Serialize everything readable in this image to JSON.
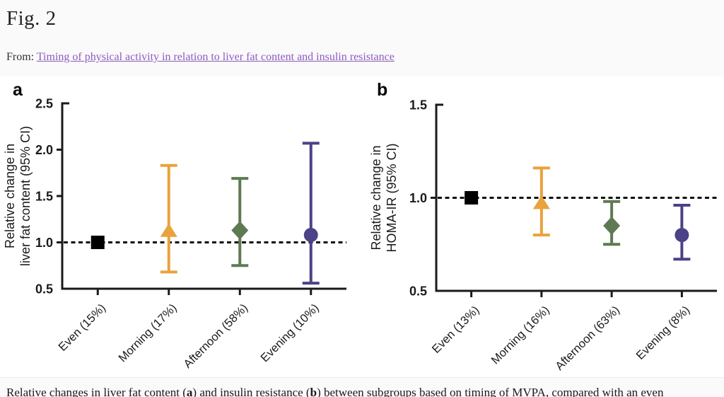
{
  "header": {
    "figure_label": "Fig. 2",
    "from_label": "From:",
    "link_text": "Timing of physical activity in relation to liver fat content and insulin resistance"
  },
  "caption": {
    "part1": "Relative changes in liver fat content (",
    "bold1": "a",
    "part2": ") and insulin resistance (",
    "bold2": "b",
    "part3": ") between subgroups based on timing of MVPA, compared with an even distribution"
  },
  "colors": {
    "even": "#000000",
    "morning": "#E9A23C",
    "afternoon": "#5E7A52",
    "evening": "#4B4287",
    "axis": "#1a1a1a",
    "reference_line": "#111111",
    "link": "#8d5bbf"
  },
  "chart_data": [
    {
      "type": "scatter",
      "panel_label": "a",
      "ylabel_lines": [
        "Relative change in",
        "liver fat content (95% CI)"
      ],
      "ylim": [
        0.5,
        2.5
      ],
      "yticks": [
        0.5,
        1.0,
        1.5,
        2.0,
        2.5
      ],
      "reference_line": 1.0,
      "grid": false,
      "categories": [
        "Even (15%)",
        "Morning (17%)",
        "Afternoon (58%)",
        "Evening (10%)"
      ],
      "points": [
        {
          "category": "Even (15%)",
          "value": 1.0,
          "ci_low": null,
          "ci_high": null,
          "marker": "square",
          "color": "#000000"
        },
        {
          "category": "Morning (17%)",
          "value": 1.12,
          "ci_low": 0.68,
          "ci_high": 1.83,
          "marker": "triangle",
          "color": "#E9A23C"
        },
        {
          "category": "Afternoon (58%)",
          "value": 1.13,
          "ci_low": 0.75,
          "ci_high": 1.69,
          "marker": "diamond",
          "color": "#5E7A52"
        },
        {
          "category": "Evening (10%)",
          "value": 1.08,
          "ci_low": 0.56,
          "ci_high": 2.07,
          "marker": "circle",
          "color": "#4B4287"
        }
      ]
    },
    {
      "type": "scatter",
      "panel_label": "b",
      "ylabel_lines": [
        "Relative change in",
        "HOMA-IR (95% CI)"
      ],
      "ylim": [
        0.5,
        1.5
      ],
      "yticks": [
        0.5,
        1.0,
        1.5
      ],
      "reference_line": 1.0,
      "grid": false,
      "categories": [
        "Even (13%)",
        "Morning (16%)",
        "Afternoon (63%)",
        "Evening (8%)"
      ],
      "points": [
        {
          "category": "Even (13%)",
          "value": 1.0,
          "ci_low": null,
          "ci_high": null,
          "marker": "square",
          "color": "#000000"
        },
        {
          "category": "Morning (16%)",
          "value": 0.97,
          "ci_low": 0.8,
          "ci_high": 1.16,
          "marker": "triangle",
          "color": "#E9A23C"
        },
        {
          "category": "Afternoon (63%)",
          "value": 0.85,
          "ci_low": 0.75,
          "ci_high": 0.98,
          "marker": "diamond",
          "color": "#5E7A52"
        },
        {
          "category": "Evening (8%)",
          "value": 0.8,
          "ci_low": 0.67,
          "ci_high": 0.96,
          "marker": "circle",
          "color": "#4B4287"
        }
      ]
    }
  ]
}
